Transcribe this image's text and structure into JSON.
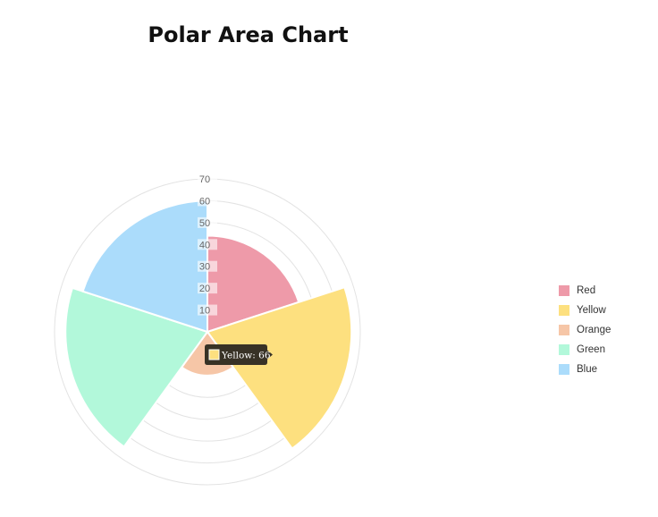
{
  "chart_data": {
    "type": "polar-area",
    "title": "Polar Area Chart",
    "categories": [
      "Red",
      "Yellow",
      "Orange",
      "Green",
      "Blue"
    ],
    "values": [
      44,
      66,
      20,
      65,
      60
    ],
    "colors": [
      "#ee9aa9",
      "#fde07f",
      "#f6c6a7",
      "#b2f8da",
      "#abdcfb"
    ],
    "r_ticks": [
      10,
      20,
      30,
      40,
      50,
      60,
      70
    ],
    "r_max": 70,
    "grid": true,
    "legend_position": "right",
    "tooltip": {
      "label": "Yellow: 66",
      "category": "Yellow"
    }
  }
}
